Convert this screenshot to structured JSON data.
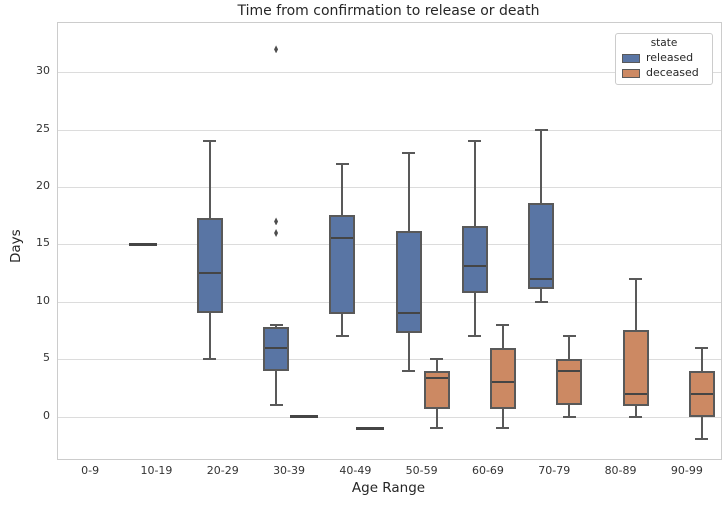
{
  "figure": {
    "title": "Time from confirmation to release or death",
    "xlabel": "Age Range",
    "ylabel": "Days"
  },
  "legend": {
    "title": "state",
    "entries": [
      {
        "label": "released",
        "color": "#5975a4"
      },
      {
        "label": "deceased",
        "color": "#cc8963"
      }
    ]
  },
  "colors": {
    "released": "#5975a4",
    "deceased": "#cc8963",
    "box_edge": "#595959",
    "gridline": "#dcdcdc",
    "spine": "#cccccc",
    "text": "#262626"
  },
  "chart_data": {
    "type": "boxplot",
    "title": "Time from confirmation to release or death",
    "xlabel": "Age Range",
    "ylabel": "Days",
    "categories": [
      "0-9",
      "10-19",
      "20-29",
      "30-39",
      "40-49",
      "50-59",
      "60-69",
      "70-79",
      "80-89",
      "90-99"
    ],
    "yticks": [
      0,
      5,
      10,
      15,
      20,
      25,
      30
    ],
    "ylim": [
      -3.7,
      34.3
    ],
    "grid": "horizontal",
    "legend_position": "upper right",
    "legend_title": "state",
    "series": [
      {
        "name": "released",
        "color": "#5975a4",
        "data": [
          null,
          {
            "single_value": 15
          },
          {
            "whislo": 5,
            "q1": 9,
            "med": 12.5,
            "q3": 17.3,
            "whishi": 24,
            "fliers": []
          },
          {
            "whislo": 1,
            "q1": 4,
            "med": 6,
            "q3": 7.8,
            "whishi": 8,
            "fliers": [
              16,
              17,
              32
            ]
          },
          {
            "whislo": 7,
            "q1": 8.9,
            "med": 15.6,
            "q3": 17.6,
            "whishi": 22,
            "fliers": []
          },
          {
            "whislo": 4,
            "q1": 7.3,
            "med": 9,
            "q3": 16.2,
            "whishi": 23,
            "fliers": []
          },
          {
            "whislo": 7,
            "q1": 10.8,
            "med": 13.1,
            "q3": 16.6,
            "whishi": 24,
            "fliers": []
          },
          {
            "whislo": 10,
            "q1": 11.1,
            "med": 12,
            "q3": 18.6,
            "whishi": 25,
            "fliers": []
          },
          null,
          null
        ]
      },
      {
        "name": "deceased",
        "color": "#cc8963",
        "data": [
          null,
          null,
          null,
          {
            "single_value": 0
          },
          {
            "single_value": -1
          },
          {
            "whislo": -1,
            "q1": 0.7,
            "med": 3.4,
            "q3": 4,
            "whishi": 5,
            "fliers": []
          },
          {
            "whislo": -1,
            "q1": 0.7,
            "med": 3,
            "q3": 6,
            "whishi": 8,
            "fliers": []
          },
          {
            "whislo": 0,
            "q1": 1,
            "med": 4,
            "q3": 5,
            "whishi": 7,
            "fliers": []
          },
          {
            "whislo": 0,
            "q1": 0.9,
            "med": 2,
            "q3": 7.5,
            "whishi": 12,
            "fliers": []
          },
          {
            "whislo": -2,
            "q1": 0,
            "med": 2,
            "q3": 4,
            "whishi": 6,
            "fliers": []
          }
        ]
      }
    ]
  }
}
